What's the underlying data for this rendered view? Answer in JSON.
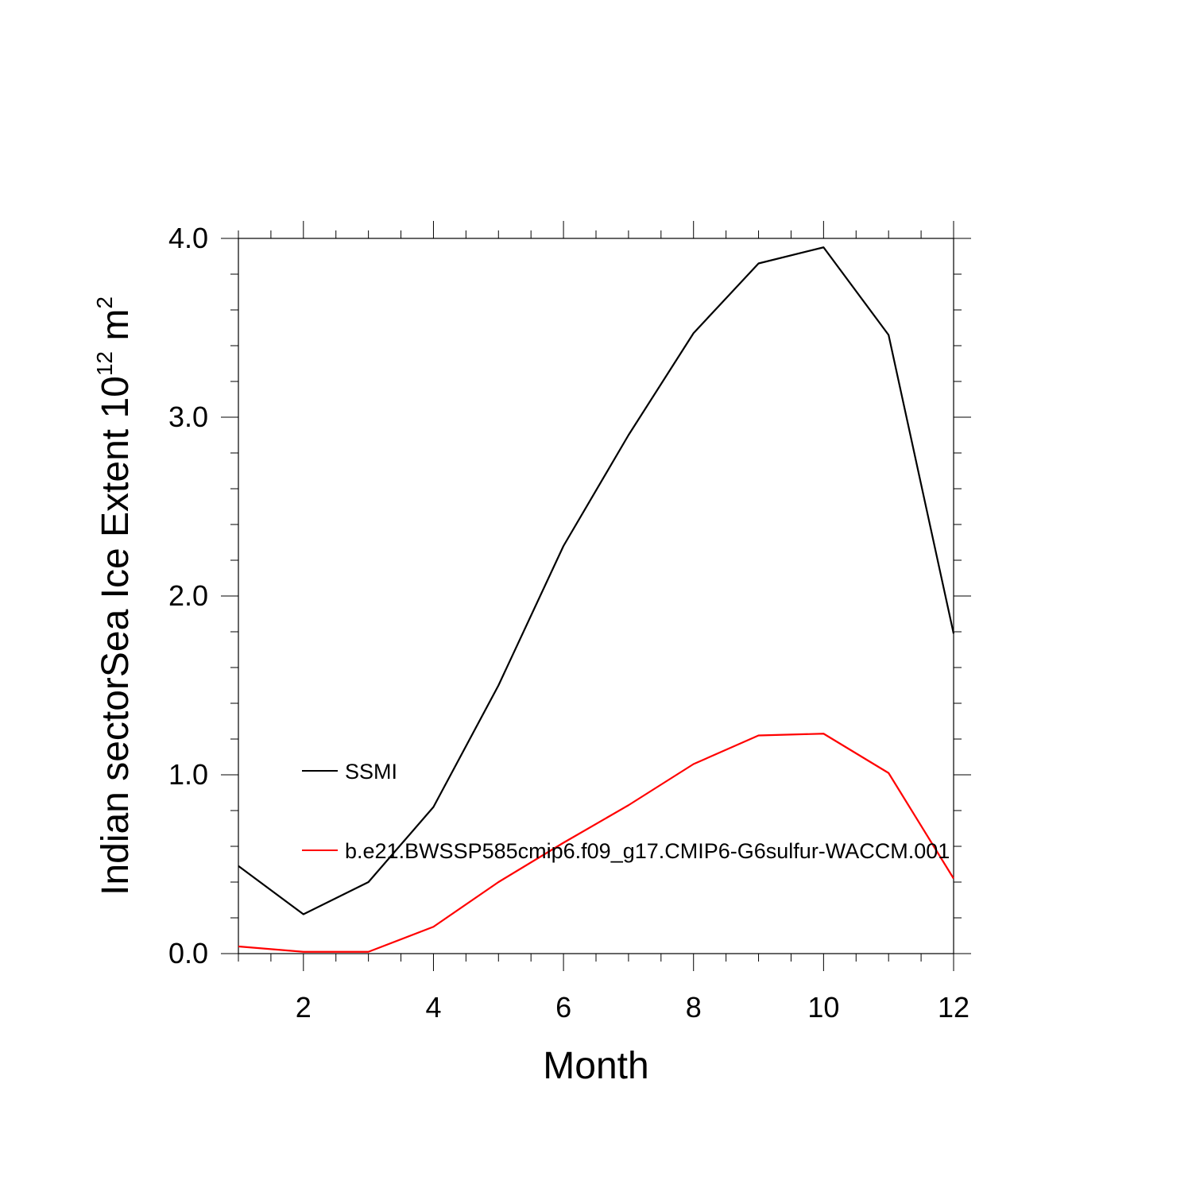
{
  "chart_data": {
    "type": "line",
    "title": "",
    "xlabel": "Month",
    "ylabel": {
      "main": "Indian sectorSea Ice Extent 10",
      "exponent": "12",
      "unit": "m",
      "unit_exponent": "2"
    },
    "xlim": [
      1,
      12
    ],
    "ylim": [
      0,
      4
    ],
    "x": [
      1,
      2,
      3,
      4,
      5,
      6,
      7,
      8,
      9,
      10,
      11,
      12
    ],
    "x_ticks": [
      {
        "value": 2,
        "label": "2"
      },
      {
        "value": 4,
        "label": "4"
      },
      {
        "value": 6,
        "label": "6"
      },
      {
        "value": 8,
        "label": "8"
      },
      {
        "value": 10,
        "label": "10"
      },
      {
        "value": 12,
        "label": "12"
      }
    ],
    "y_ticks": [
      {
        "value": 0,
        "label": "0.0"
      },
      {
        "value": 1,
        "label": "1.0"
      },
      {
        "value": 2,
        "label": "2.0"
      },
      {
        "value": 3,
        "label": "3.0"
      },
      {
        "value": 4,
        "label": "4.0"
      }
    ],
    "grid": false,
    "legend_position": "inside-left",
    "series": [
      {
        "name": "SSMI",
        "color": "#000000",
        "values": [
          0.49,
          0.22,
          0.4,
          0.82,
          1.5,
          2.28,
          2.9,
          3.47,
          3.86,
          3.95,
          3.46,
          1.79
        ]
      },
      {
        "name": "b.e21.BWSSP585cmip6.f09_g17.CMIP6-G6sulfur-WACCM.001",
        "color": "#ff0000",
        "values": [
          0.04,
          0.01,
          0.01,
          0.15,
          0.4,
          0.62,
          0.83,
          1.06,
          1.22,
          1.23,
          1.01,
          0.42
        ]
      }
    ]
  }
}
